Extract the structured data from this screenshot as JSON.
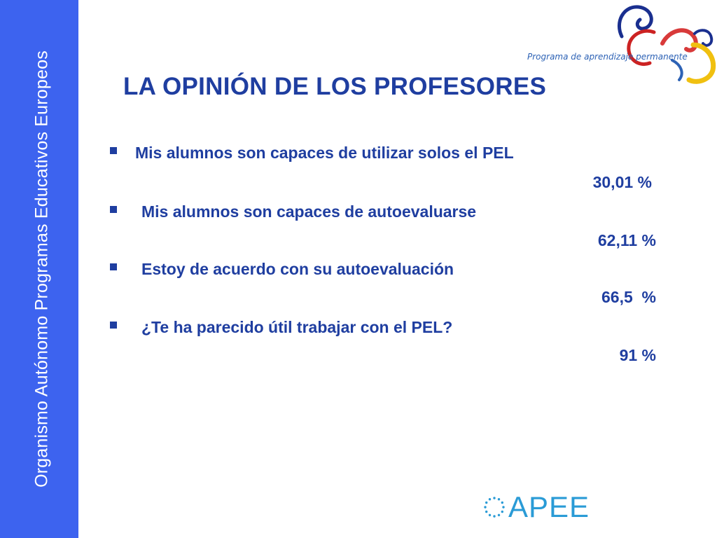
{
  "sidebar": {
    "text": "Organismo Autónomo Programas Educativos Europeos"
  },
  "logo": {
    "caption": "Programa de aprendizaje permanente",
    "icon": "llp-swirl-logo"
  },
  "slide": {
    "title": "LA OPINIÓN DE LOS PROFESORES"
  },
  "items": [
    {
      "text": "Mis alumnos son capaces de utilizar solos el PEL",
      "value": "30,01 %"
    },
    {
      "text": "Mis alumnos son capaces de autoevaluarse",
      "value": "62,11 %"
    },
    {
      "text": "Estoy de acuerdo con su autoevaluación",
      "value": "66,5  %"
    },
    {
      "text": "¿Te ha parecido útil trabajar con el PEL?",
      "value": "91 %"
    }
  ],
  "footer_logo": {
    "text": "APEE",
    "icon": "eu-stars-icon"
  },
  "colors": {
    "sidebar": "#3d63ef",
    "text": "#1f3ea0",
    "apee": "#2a9bd6"
  }
}
